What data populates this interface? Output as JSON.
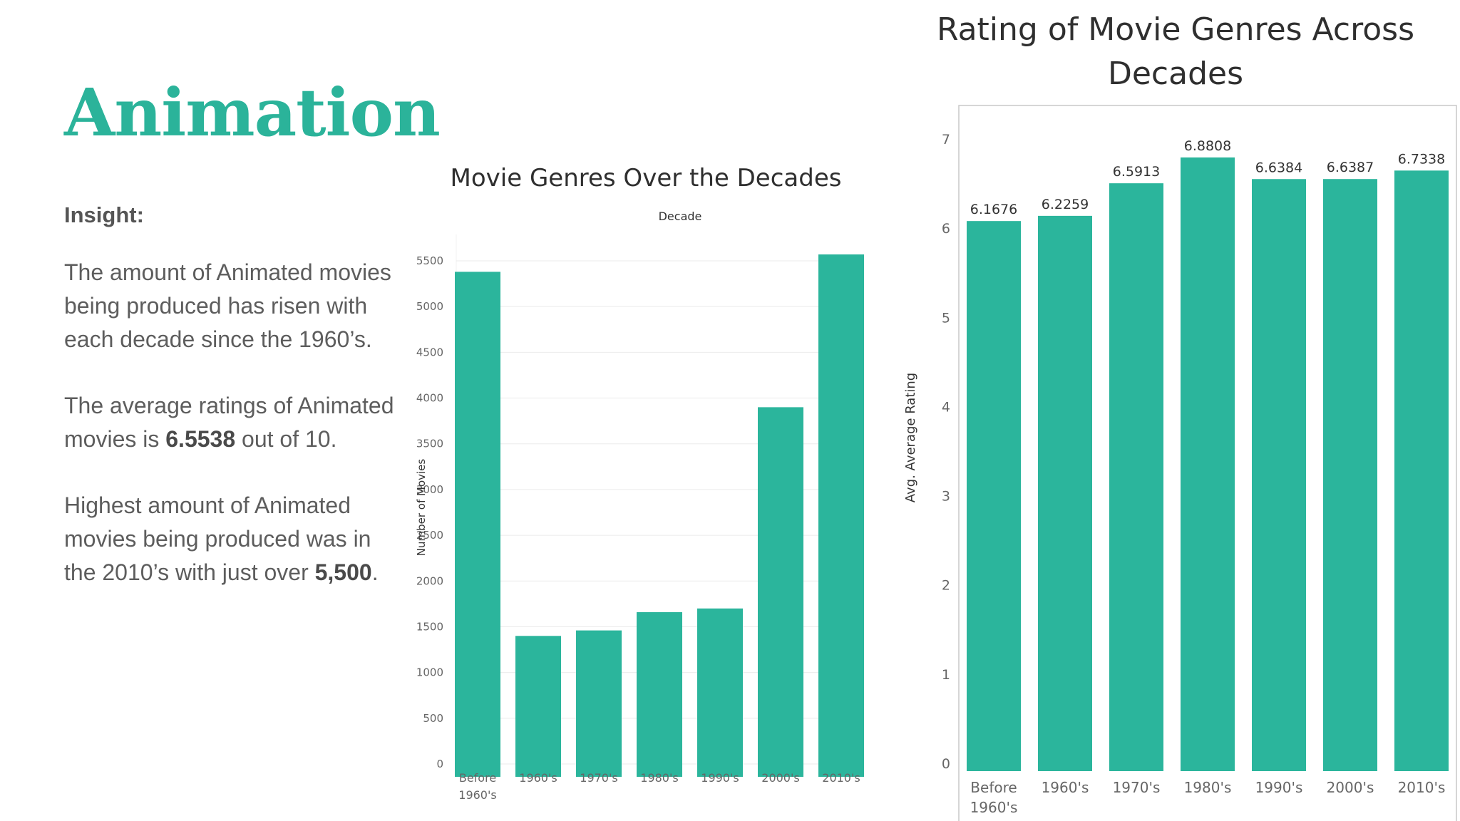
{
  "slide": {
    "title": "Animation",
    "insight_label": "Insight:",
    "paragraphs": [
      {
        "text_before": "The amount of Animated movies being produced has risen with each decade since the 1960’s.",
        "bold": "",
        "text_after": ""
      },
      {
        "text_before": "The average ratings of Animated movies is ",
        "bold": "6.5538",
        "text_after": " out of 10."
      },
      {
        "text_before": "Highest amount of Animated movies being produced was in the 2010’s with just over ",
        "bold": "5,500",
        "text_after": "."
      }
    ]
  },
  "colors": {
    "bar": "#2bb59c",
    "title_accent": "#2bb39a",
    "grid": "#ebebeb",
    "frame": "#c8c8c8"
  },
  "chart_data": [
    {
      "id": "left",
      "type": "bar",
      "title": "Movie Genres Over the Decades",
      "top_axis_label": "Decade",
      "xlabel": "",
      "ylabel": "Number of Movies",
      "categories": [
        "Before 1960's",
        "1960's",
        "1970's",
        "1980's",
        "1990's",
        "2000's",
        "2010's"
      ],
      "values": [
        5380,
        1400,
        1460,
        1660,
        1700,
        3900,
        5570
      ],
      "ylim": [
        0,
        5500
      ],
      "yticks": [
        0,
        500,
        1000,
        1500,
        2000,
        2500,
        3000,
        3500,
        4000,
        4500,
        5000,
        5500
      ],
      "grid": true,
      "data_labels": false
    },
    {
      "id": "right",
      "type": "bar",
      "title": "Rating of Movie Genres Across Decades",
      "xlabel": "",
      "ylabel": "Avg. Average Rating",
      "categories": [
        "Before 1960's",
        "1960's",
        "1970's",
        "1980's",
        "1990's",
        "2000's",
        "2010's"
      ],
      "values": [
        6.1676,
        6.2259,
        6.5913,
        6.8808,
        6.6384,
        6.6387,
        6.7338
      ],
      "value_labels": [
        "6.1676",
        "6.2259",
        "6.5913",
        "6.8808",
        "6.6384",
        "6.6387",
        "6.7338"
      ],
      "ylim": [
        0,
        7
      ],
      "yticks": [
        0,
        1,
        2,
        3,
        4,
        5,
        6,
        7
      ],
      "grid": false,
      "data_labels": true
    }
  ]
}
